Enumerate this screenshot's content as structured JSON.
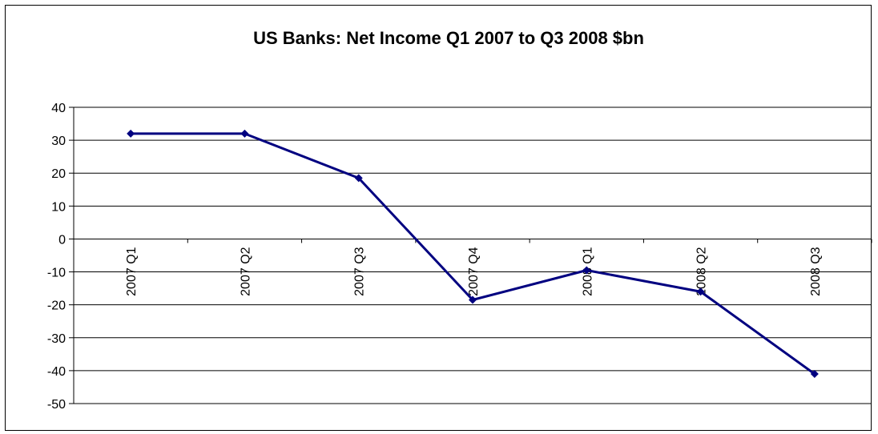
{
  "chart_data": {
    "type": "line",
    "title": "US Banks: Net Income Q1 2007 to Q3 2008 $bn",
    "categories": [
      "2007 Q1",
      "2007 Q2",
      "2007 Q3",
      "2007 Q4",
      "2008 Q1",
      "2008 Q2",
      "2008 Q3"
    ],
    "series": [
      {
        "values": [
          32,
          32,
          18.5,
          -18.5,
          -9.5,
          -16,
          -41
        ]
      }
    ],
    "ylim": [
      -50,
      40
    ],
    "yticks": [
      40,
      30,
      20,
      10,
      0,
      -10,
      -20,
      -30,
      -40,
      -50
    ],
    "grid": true,
    "colors": {
      "line": "#000080",
      "marker": "#000080",
      "grid": "#000000"
    }
  }
}
